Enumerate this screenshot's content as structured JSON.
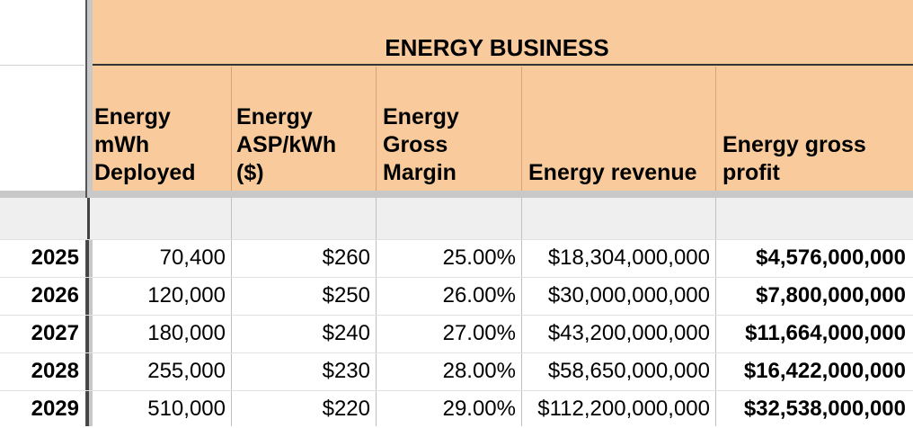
{
  "section_title": "ENERGY BUSINESS",
  "columns": [
    "Energy mWh Deployed",
    "Energy ASP/kWh ($)",
    "Energy Gross Margin",
    "Energy revenue",
    "Energy gross profit"
  ],
  "columns_lines": [
    [
      "Energy",
      "mWh",
      "Deployed"
    ],
    [
      "Energy",
      "ASP/kWh",
      "($)"
    ],
    [
      "Energy",
      "Gross",
      "Margin"
    ],
    [
      "Energy revenue"
    ],
    [
      "Energy gross",
      "profit"
    ]
  ],
  "rows": [
    {
      "year": "2025",
      "mwh": "70,400",
      "asp": "$260",
      "margin": "25.00%",
      "revenue": "$18,304,000,000",
      "profit": "$4,576,000,000"
    },
    {
      "year": "2026",
      "mwh": "120,000",
      "asp": "$250",
      "margin": "26.00%",
      "revenue": "$30,000,000,000",
      "profit": "$7,800,000,000"
    },
    {
      "year": "2027",
      "mwh": "180,000",
      "asp": "$240",
      "margin": "27.00%",
      "revenue": "$43,200,000,000",
      "profit": "$11,664,000,000"
    },
    {
      "year": "2028",
      "mwh": "255,000",
      "asp": "$230",
      "margin": "28.00%",
      "revenue": "$58,650,000,000",
      "profit": "$16,422,000,000"
    },
    {
      "year": "2029",
      "mwh": "510,000",
      "asp": "$220",
      "margin": "29.00%",
      "revenue": "$112,200,000,000",
      "profit": "$32,538,000,000"
    }
  ],
  "colors": {
    "header_fill": "#f9cb9c",
    "frozen_divider": "#c8c8c8",
    "empty_row_fill": "#efefef"
  }
}
